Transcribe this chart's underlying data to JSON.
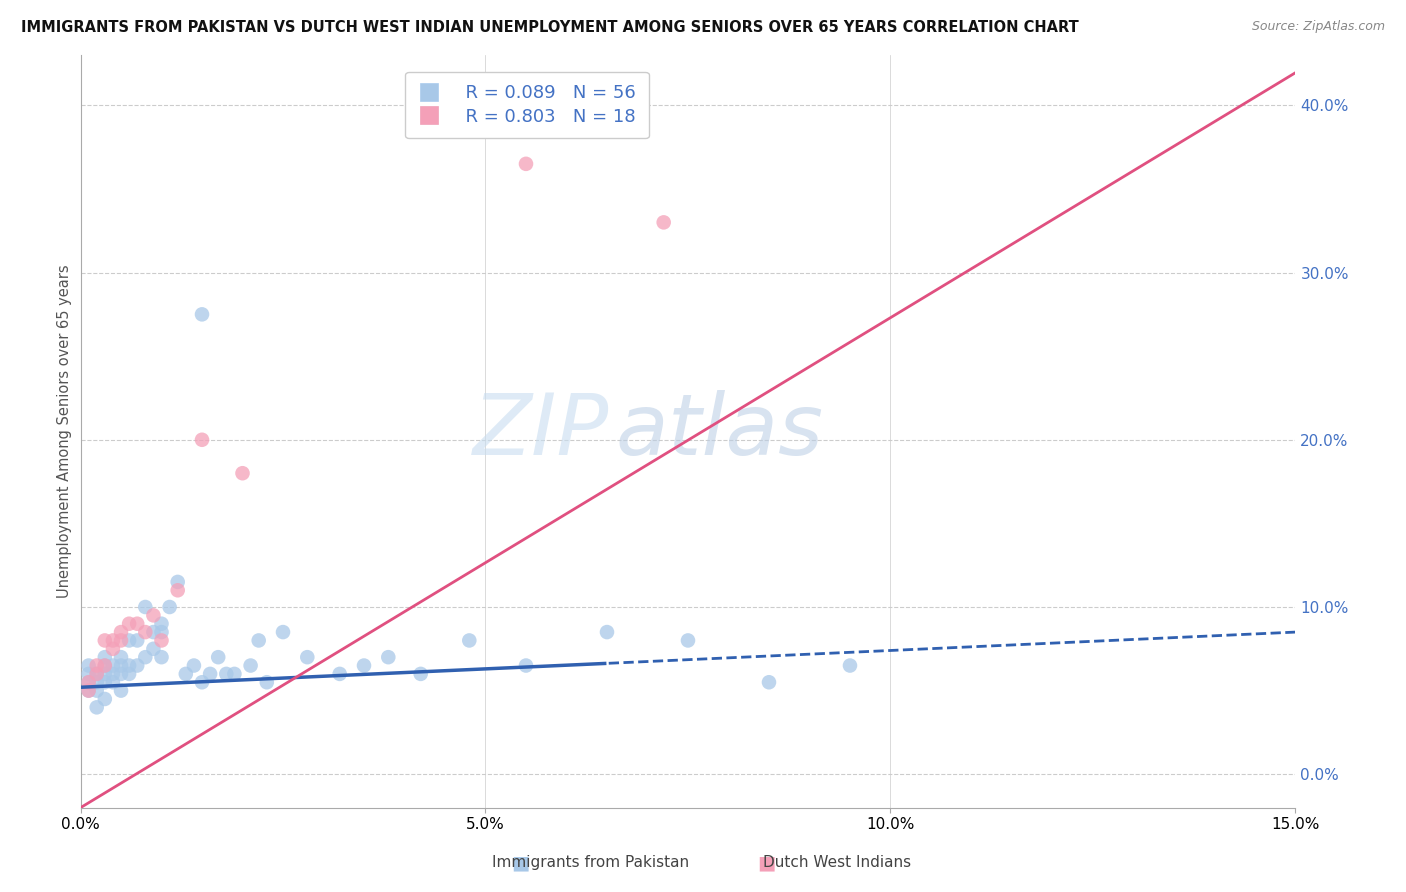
{
  "title": "IMMIGRANTS FROM PAKISTAN VS DUTCH WEST INDIAN UNEMPLOYMENT AMONG SENIORS OVER 65 YEARS CORRELATION CHART",
  "source": "Source: ZipAtlas.com",
  "ylabel": "Unemployment Among Seniors over 65 years",
  "xlabel_blue": "Immigrants from Pakistan",
  "xlabel_pink": "Dutch West Indians",
  "xlim": [
    0.0,
    0.15
  ],
  "ylim": [
    -0.02,
    0.43
  ],
  "right_yticks": [
    0.0,
    0.1,
    0.2,
    0.3,
    0.4
  ],
  "legend_R_blue": "R = 0.089",
  "legend_N_blue": "N = 56",
  "legend_R_pink": "R = 0.803",
  "legend_N_pink": "N = 18",
  "color_blue": "#a8c8e8",
  "color_pink": "#f4a0b8",
  "color_blue_line": "#3060b0",
  "color_pink_line": "#e05080",
  "color_right_axis": "#4472c4",
  "watermark_zip": "ZIP",
  "watermark_atlas": "atlas",
  "pakistan_x": [
    0.001,
    0.001,
    0.001,
    0.001,
    0.002,
    0.002,
    0.002,
    0.002,
    0.003,
    0.003,
    0.003,
    0.003,
    0.003,
    0.004,
    0.004,
    0.004,
    0.005,
    0.005,
    0.005,
    0.005,
    0.006,
    0.006,
    0.006,
    0.007,
    0.007,
    0.008,
    0.008,
    0.009,
    0.009,
    0.01,
    0.01,
    0.01,
    0.011,
    0.012,
    0.013,
    0.014,
    0.015,
    0.016,
    0.017,
    0.018,
    0.019,
    0.021,
    0.022,
    0.023,
    0.025,
    0.028,
    0.032,
    0.035,
    0.038,
    0.042,
    0.048,
    0.055,
    0.065,
    0.075,
    0.085,
    0.095
  ],
  "pakistan_y": [
    0.05,
    0.055,
    0.06,
    0.065,
    0.04,
    0.05,
    0.055,
    0.06,
    0.045,
    0.055,
    0.06,
    0.065,
    0.07,
    0.055,
    0.06,
    0.065,
    0.05,
    0.06,
    0.065,
    0.07,
    0.06,
    0.065,
    0.08,
    0.065,
    0.08,
    0.07,
    0.1,
    0.075,
    0.085,
    0.07,
    0.085,
    0.09,
    0.1,
    0.115,
    0.06,
    0.065,
    0.055,
    0.06,
    0.07,
    0.06,
    0.06,
    0.065,
    0.08,
    0.055,
    0.085,
    0.07,
    0.06,
    0.065,
    0.07,
    0.06,
    0.08,
    0.065,
    0.085,
    0.08,
    0.055,
    0.065
  ],
  "pakistan_outlier_x": [
    0.015
  ],
  "pakistan_outlier_y": [
    0.275
  ],
  "dutch_x": [
    0.001,
    0.001,
    0.002,
    0.002,
    0.003,
    0.003,
    0.004,
    0.004,
    0.005,
    0.005,
    0.006,
    0.007,
    0.008,
    0.009,
    0.01,
    0.012,
    0.015,
    0.02
  ],
  "dutch_y": [
    0.05,
    0.055,
    0.06,
    0.065,
    0.065,
    0.08,
    0.08,
    0.075,
    0.085,
    0.08,
    0.09,
    0.09,
    0.085,
    0.095,
    0.08,
    0.11,
    0.2,
    0.18
  ],
  "dutch_outlier1_x": [
    0.055
  ],
  "dutch_outlier1_y": [
    0.365
  ],
  "dutch_outlier2_x": [
    0.072
  ],
  "dutch_outlier2_y": [
    0.33
  ]
}
